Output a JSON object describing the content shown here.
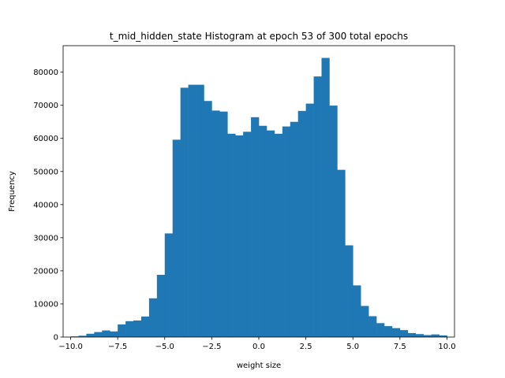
{
  "chart_data": {
    "type": "bar",
    "title": "t_mid_hidden_state Histogram at epoch 53 of 300 total epochs",
    "xlabel": "weight size",
    "ylabel": "Frequency",
    "xlim": [
      -10.4,
      10.4
    ],
    "ylim": [
      0,
      88000
    ],
    "bar_color": "#1f77b4",
    "bins": {
      "start": -10.0,
      "width": 0.4167,
      "values": [
        200,
        400,
        1000,
        1500,
        2000,
        1700,
        3800,
        4800,
        5000,
        6200,
        11700,
        18800,
        31300,
        59600,
        75300,
        76200,
        76200,
        71300,
        68400,
        68100,
        61400,
        60900,
        62000,
        66400,
        63800,
        62400,
        61400,
        63600,
        65000,
        68300,
        70500,
        78700,
        84300,
        69900,
        50500,
        27700,
        15600,
        9400,
        6300,
        4200,
        3300,
        2700,
        2100,
        1200,
        900,
        600,
        800,
        500
      ]
    },
    "x_ticks": [
      {
        "value": -10.0,
        "label": "−10.0"
      },
      {
        "value": -7.5,
        "label": "−7.5"
      },
      {
        "value": -5.0,
        "label": "−5.0"
      },
      {
        "value": -2.5,
        "label": "−2.5"
      },
      {
        "value": 0.0,
        "label": "0.0"
      },
      {
        "value": 2.5,
        "label": "2.5"
      },
      {
        "value": 5.0,
        "label": "5.0"
      },
      {
        "value": 7.5,
        "label": "7.5"
      },
      {
        "value": 10.0,
        "label": "10.0"
      }
    ],
    "y_ticks": [
      {
        "value": 0,
        "label": "0"
      },
      {
        "value": 10000,
        "label": "10000"
      },
      {
        "value": 20000,
        "label": "20000"
      },
      {
        "value": 30000,
        "label": "30000"
      },
      {
        "value": 40000,
        "label": "40000"
      },
      {
        "value": 50000,
        "label": "50000"
      },
      {
        "value": 60000,
        "label": "60000"
      },
      {
        "value": 70000,
        "label": "70000"
      },
      {
        "value": 80000,
        "label": "80000"
      }
    ],
    "grid": false,
    "legend": "none"
  }
}
